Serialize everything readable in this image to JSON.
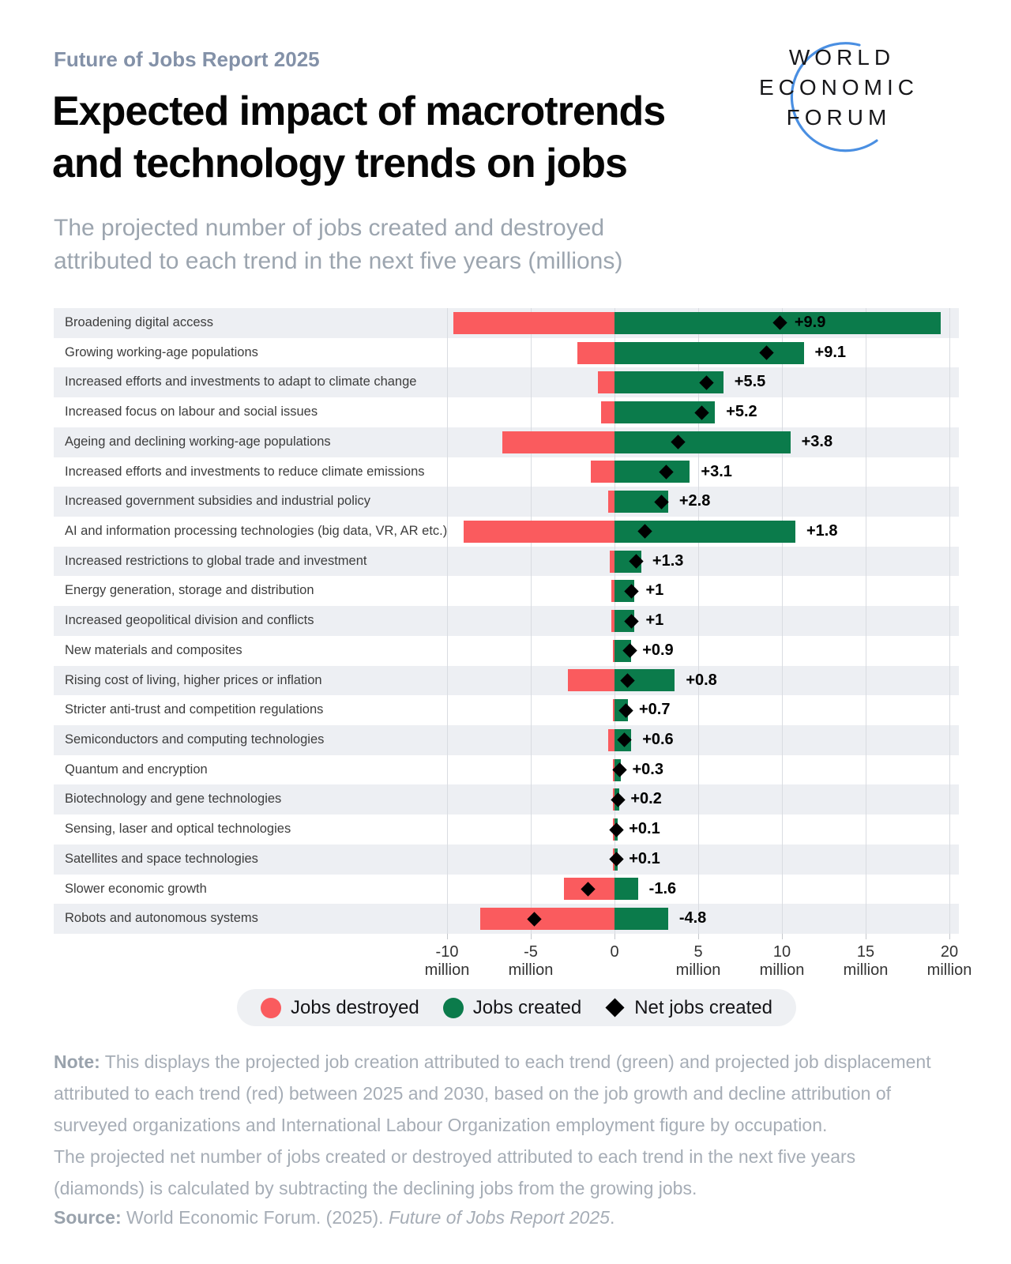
{
  "header": {
    "eyebrow": "Future of Jobs Report 2025",
    "title": "Expected impact of macrotrends\nand technology trends on jobs",
    "subtitle": "The projected number of jobs created and destroyed\nattributed to each trend in the next five years (millions)",
    "logo": {
      "line1": "WORLD",
      "line2": "ECONOMIC",
      "line3": "FORUM",
      "arc_color": "#4A8FE2"
    }
  },
  "chart_data": {
    "type": "bar",
    "orientation": "horizontal-diverging",
    "title": "Expected impact of macrotrends and technology trends on jobs",
    "subtitle": "The projected number of jobs created and destroyed attributed to each trend in the next five years (millions)",
    "xlabel": "millions of jobs",
    "ylabel": "",
    "xlim": [
      -10.6,
      20.6
    ],
    "grid": true,
    "legend_position": "bottom",
    "categories": [
      "Broadening digital access",
      "Growing working-age populations",
      "Increased efforts and investments to adapt to climate change",
      "Increased focus on labour and social issues",
      "Ageing and declining working-age populations",
      "Increased efforts and investments to reduce climate emissions",
      "Increased government subsidies and industrial policy",
      "AI and information processing technologies (big data, VR, AR etc.)",
      "Increased restrictions to global trade and investment",
      "Energy generation, storage and distribution",
      "Increased geopolitical division and conflicts",
      "New materials and composites",
      "Rising cost of living, higher prices or inflation",
      "Stricter anti-trust and competition regulations",
      "Semiconductors and computing technologies",
      "Quantum and encryption",
      "Biotechnology and gene technologies",
      "Sensing, laser and optical technologies",
      "Satellites and space technologies",
      "Slower economic growth",
      "Robots and autonomous systems"
    ],
    "series": [
      {
        "name": "Jobs destroyed",
        "color": "#FA5B5E",
        "values": [
          -9.6,
          -2.2,
          -1.0,
          -0.8,
          -6.7,
          -1.4,
          -0.4,
          -9.0,
          -0.3,
          -0.2,
          -0.2,
          -0.1,
          -2.8,
          -0.1,
          -0.4,
          -0.1,
          -0.1,
          -0.1,
          -0.1,
          -3.0,
          -8.0
        ]
      },
      {
        "name": "Jobs created",
        "color": "#0B7B4B",
        "values": [
          19.5,
          11.3,
          6.5,
          6.0,
          10.5,
          4.5,
          3.2,
          10.8,
          1.6,
          1.2,
          1.2,
          1.0,
          3.6,
          0.8,
          1.0,
          0.4,
          0.3,
          0.2,
          0.2,
          1.4,
          3.2
        ]
      },
      {
        "name": "Net jobs created",
        "color": "#000000",
        "values": [
          9.9,
          9.1,
          5.5,
          5.2,
          3.8,
          3.1,
          2.8,
          1.8,
          1.3,
          1.0,
          1.0,
          0.9,
          0.8,
          0.7,
          0.6,
          0.3,
          0.2,
          0.1,
          0.1,
          -1.6,
          -4.8
        ],
        "labels": [
          "+9.9",
          "+9.1",
          "+5.5",
          "+5.2",
          "+3.8",
          "+3.1",
          "+2.8",
          "+1.8",
          "+1.3",
          "+1",
          "+1",
          "+0.9",
          "+0.8",
          "+0.7",
          "+0.6",
          "+0.3",
          "+0.2",
          "+0.1",
          "+0.1",
          "-1.6",
          "-4.8"
        ]
      }
    ],
    "x_ticks": [
      {
        "value": -10,
        "label": "-10",
        "unit": "million"
      },
      {
        "value": -5,
        "label": "-5",
        "unit": "million"
      },
      {
        "value": 0,
        "label": "0",
        "unit": ""
      },
      {
        "value": 5,
        "label": "5",
        "unit": "million"
      },
      {
        "value": 10,
        "label": "10",
        "unit": "million"
      },
      {
        "value": 15,
        "label": "15",
        "unit": "million"
      },
      {
        "value": 20,
        "label": "20",
        "unit": "million"
      }
    ],
    "legend": [
      {
        "label": "Jobs destroyed",
        "swatch": "circle",
        "color": "#FA5B5E"
      },
      {
        "label": "Jobs created",
        "swatch": "circle",
        "color": "#0B7B4B"
      },
      {
        "label": "Net jobs created",
        "swatch": "diamond",
        "color": "#000000"
      }
    ]
  },
  "footer": {
    "note_label": "Note:",
    "note_text": "This displays the projected job creation attributed to each trend (green) and projected job displacement\nattributed to each trend (red) between 2025 and 2030, based on the job growth and decline attribution of\nsurveyed organizations and International Labour Organization employment figure by occupation.\nThe projected net number of jobs created or destroyed attributed to each trend in the next five years\n(diamonds) is calculated by subtracting the declining jobs from the growing jobs.",
    "source_label": "Source:",
    "source_text": " World Economic Forum. (2025). ",
    "source_italic": "Future of Jobs Report 2025",
    "source_period": "."
  }
}
